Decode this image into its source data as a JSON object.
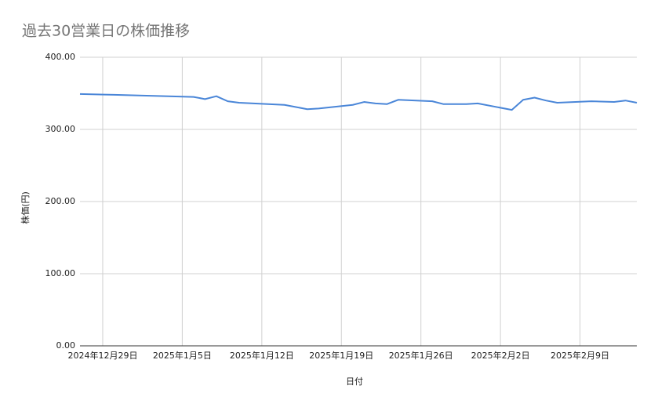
{
  "chart_data": {
    "type": "line",
    "title": "過去30営業日の株価推移",
    "x_label": "日付",
    "y_label": "株価(円)",
    "x": [
      "2024-12-27",
      "2024-12-30",
      "2025-01-06",
      "2025-01-07",
      "2025-01-08",
      "2025-01-09",
      "2025-01-10",
      "2025-01-14",
      "2025-01-15",
      "2025-01-16",
      "2025-01-17",
      "2025-01-20",
      "2025-01-21",
      "2025-01-22",
      "2025-01-23",
      "2025-01-24",
      "2025-01-27",
      "2025-01-28",
      "2025-01-29",
      "2025-01-30",
      "2025-01-31",
      "2025-02-03",
      "2025-02-04",
      "2025-02-05",
      "2025-02-06",
      "2025-02-07",
      "2025-02-10",
      "2025-02-12",
      "2025-02-13",
      "2025-02-14"
    ],
    "series": [
      {
        "name": "株価",
        "color": "#4a86d8",
        "values": [
          349,
          348,
          345,
          342,
          346,
          339,
          337,
          334,
          331,
          328,
          329,
          334,
          338,
          336,
          335,
          341,
          339,
          335,
          335,
          335,
          336,
          327,
          341,
          344,
          340,
          337,
          339,
          338,
          340,
          337
        ]
      }
    ],
    "xlim": [
      "2024-12-27",
      "2025-02-14"
    ],
    "xticks": [
      {
        "value": "2024-12-29",
        "label": "2024年12月29日"
      },
      {
        "value": "2025-01-05",
        "label": "2025年1月5日"
      },
      {
        "value": "2025-01-12",
        "label": "2025年1月12日"
      },
      {
        "value": "2025-01-19",
        "label": "2025年1月19日"
      },
      {
        "value": "2025-01-26",
        "label": "2025年1月26日"
      },
      {
        "value": "2025-02-02",
        "label": "2025年2月2日"
      },
      {
        "value": "2025-02-09",
        "label": "2025年2月9日"
      }
    ],
    "ylim": [
      0,
      400
    ],
    "yticks": [
      {
        "value": 0,
        "label": "0.00"
      },
      {
        "value": 100,
        "label": "100.00"
      },
      {
        "value": 200,
        "label": "200.00"
      },
      {
        "value": 300,
        "label": "300.00"
      },
      {
        "value": 400,
        "label": "400.00"
      }
    ],
    "grid": true
  }
}
